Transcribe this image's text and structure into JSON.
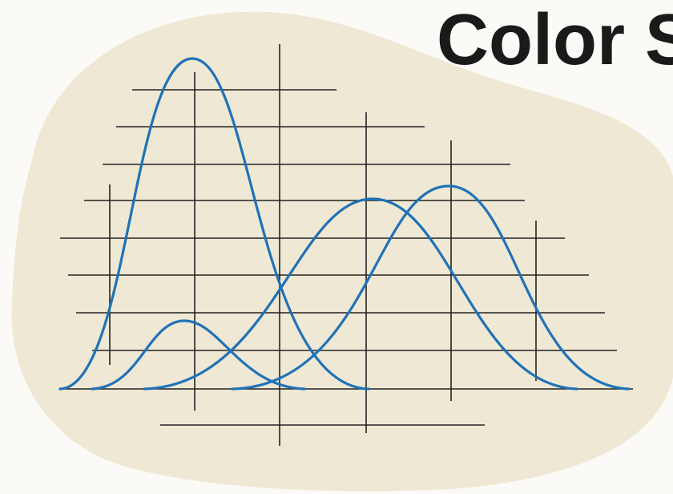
{
  "title": "Color S"
}
